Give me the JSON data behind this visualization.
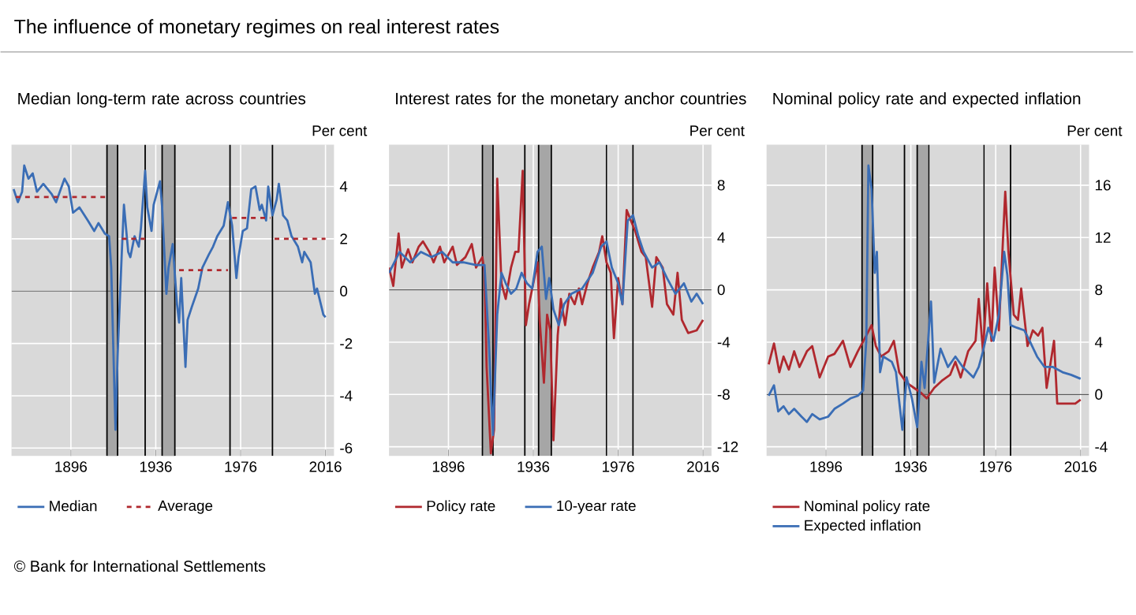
{
  "chart_data": [
    {
      "type": "other",
      "title": "The influence of monetary regimes on real interest rates",
      "annotations": [
        "© Bank for International Settlements"
      ]
    },
    {
      "type": "line",
      "title": "Median long-term rate across countries",
      "ylabel": "Per cent",
      "xlim": [
        1868,
        2020
      ],
      "ylim": [
        -6.3,
        5.6
      ],
      "xticks": [
        1896,
        1936,
        1976,
        2016
      ],
      "yticks": [
        -6,
        -4,
        -2,
        0,
        2,
        4
      ],
      "grid": true,
      "legend": "bottom",
      "bands": [
        {
          "axis": "x",
          "from": 1913,
          "to": 1918,
          "color": "#a6a6a6"
        },
        {
          "axis": "x",
          "from": 1939,
          "to": 1945,
          "color": "#a6a6a6"
        }
      ],
      "ref_lines": [
        {
          "axis": "y",
          "value": 0,
          "color": "#595959"
        },
        {
          "axis": "x",
          "value": 1913,
          "color": "#000000"
        },
        {
          "axis": "x",
          "value": 1918,
          "color": "#000000"
        },
        {
          "axis": "x",
          "value": 1931,
          "color": "#000000"
        },
        {
          "axis": "x",
          "value": 1939,
          "color": "#000000"
        },
        {
          "axis": "x",
          "value": 1945,
          "color": "#000000"
        },
        {
          "axis": "x",
          "value": 1971,
          "color": "#000000"
        },
        {
          "axis": "x",
          "value": 1991,
          "color": "#000000"
        }
      ],
      "series": [
        {
          "name": "Median",
          "color": "#3a6db5",
          "x": [
            1869,
            1871,
            1873,
            1874,
            1876,
            1878,
            1880,
            1883,
            1887,
            1889,
            1893,
            1895,
            1897,
            1900,
            1904,
            1907,
            1909,
            1912,
            1914,
            1915,
            1917,
            1918,
            1920,
            1921,
            1923,
            1924,
            1926,
            1928,
            1929,
            1931,
            1932,
            1934,
            1935,
            1936,
            1938,
            1939,
            1941,
            1942,
            1944,
            1946,
            1947,
            1948,
            1950,
            1951,
            1953,
            1956,
            1958,
            1961,
            1963,
            1965,
            1968,
            1970,
            1972,
            1974,
            1975,
            1977,
            1979,
            1981,
            1983,
            1985,
            1986,
            1988,
            1989,
            1991,
            1993,
            1994,
            1996,
            1998,
            2000,
            2003,
            2005,
            2006,
            2009,
            2011,
            2012,
            2015,
            2016
          ],
          "values": [
            3.9,
            3.4,
            3.8,
            4.8,
            4.3,
            4.5,
            3.8,
            4.1,
            3.7,
            3.4,
            4.3,
            4.0,
            3.0,
            3.2,
            2.7,
            2.3,
            2.6,
            2.2,
            2.1,
            0.9,
            -5.3,
            -2.5,
            1.5,
            3.3,
            1.5,
            1.3,
            2.1,
            1.7,
            2.4,
            4.6,
            3.2,
            2.3,
            3.3,
            3.6,
            4.2,
            3.2,
            -0.1,
            0.9,
            1.8,
            -0.5,
            -1.2,
            0.5,
            -2.9,
            -1.1,
            -0.6,
            0.1,
            0.9,
            1.4,
            1.7,
            2.1,
            2.5,
            3.4,
            2.5,
            0.5,
            1.3,
            2.3,
            2.4,
            3.9,
            4.0,
            3.1,
            3.3,
            2.7,
            4.0,
            2.9,
            3.5,
            4.1,
            2.9,
            2.7,
            2.1,
            1.7,
            1.1,
            1.5,
            1.1,
            -0.1,
            0.1,
            -0.9,
            -1.0
          ]
        },
        {
          "name": "Average",
          "color": "#b0282e",
          "line_style": "dashed",
          "x": [
            1870,
            1914,
            1917,
            1920,
            1931,
            1940,
            1947,
            1970,
            1971,
            1972,
            1990,
            1991,
            1992,
            2016
          ],
          "values": [
            3.6,
            3.6,
            null,
            2.0,
            2.0,
            null,
            0.8,
            0.8,
            null,
            2.8,
            2.8,
            null,
            2.0,
            2.0
          ]
        }
      ]
    },
    {
      "type": "line",
      "title": "Interest rates for the monetary anchor countries",
      "ylabel": "Per cent",
      "xlim": [
        1868,
        2020
      ],
      "ylim": [
        -12.7,
        11.1
      ],
      "xticks": [
        1896,
        1936,
        1976,
        2016
      ],
      "yticks": [
        -12,
        -8,
        -4,
        0,
        4,
        8
      ],
      "grid": true,
      "legend": "bottom",
      "bands": [
        {
          "axis": "x",
          "from": 1912,
          "to": 1917,
          "color": "#a6a6a6"
        },
        {
          "axis": "x",
          "from": 1938.5,
          "to": 1944.5,
          "color": "#a6a6a6"
        }
      ],
      "ref_lines": [
        {
          "axis": "y",
          "value": 0,
          "color": "#595959"
        },
        {
          "axis": "x",
          "value": 1912,
          "color": "#000000"
        },
        {
          "axis": "x",
          "value": 1917,
          "color": "#000000"
        },
        {
          "axis": "x",
          "value": 1932,
          "color": "#000000"
        },
        {
          "axis": "x",
          "value": 1938.5,
          "color": "#000000"
        },
        {
          "axis": "x",
          "value": 1944.5,
          "color": "#000000"
        },
        {
          "axis": "x",
          "value": 1970.5,
          "color": "#000000"
        },
        {
          "axis": "x",
          "value": 1983,
          "color": "#000000"
        }
      ],
      "series": [
        {
          "name": "Policy rate",
          "color": "#b0282e",
          "x": [
            1868,
            1870,
            1872.5,
            1874,
            1877,
            1879,
            1882,
            1884,
            1887,
            1889,
            1892,
            1894,
            1898,
            1900,
            1904,
            1907,
            1909,
            1912,
            1913,
            1914,
            1916,
            1917.5,
            1919,
            1921,
            1923,
            1925.5,
            1927.5,
            1929,
            1931,
            1932.5,
            1934,
            1936,
            1938,
            1939,
            1941,
            1942.5,
            1944,
            1945.5,
            1947.5,
            1949,
            1951,
            1953,
            1955.5,
            1957.5,
            1959,
            1961.5,
            1964,
            1967,
            1968.5,
            1970.5,
            1972.5,
            1974,
            1976,
            1978,
            1980,
            1982,
            1984,
            1987,
            1989,
            1992,
            1994,
            1997,
            1999,
            2002,
            2004,
            2006,
            2009,
            2013,
            2016
          ],
          "values": [
            1.7,
            0.3,
            4.3,
            1.7,
            3.1,
            2.1,
            3.3,
            3.7,
            2.9,
            2.1,
            3.3,
            2.1,
            3.3,
            1.9,
            2.5,
            3.5,
            1.7,
            2.5,
            1.3,
            -5.9,
            -12.5,
            -10.7,
            8.5,
            0.5,
            -0.7,
            1.7,
            2.9,
            2.9,
            9.1,
            -2.7,
            -1.1,
            0.5,
            2.1,
            -2.3,
            -7.1,
            -1.9,
            -3.1,
            -11.5,
            -3.5,
            -0.7,
            -2.7,
            -0.3,
            -1.1,
            0.1,
            -1.1,
            0.5,
            1.7,
            2.9,
            4.1,
            2.1,
            1.3,
            -3.7,
            0.9,
            -1.1,
            6.1,
            5.3,
            4.5,
            2.9,
            2.5,
            -1.3,
            2.5,
            1.7,
            -1.1,
            -1.9,
            1.3,
            -2.3,
            -3.3,
            -3.1,
            -2.3
          ]
        },
        {
          "name": "10-year rate",
          "color": "#3a6db5",
          "x": [
            1868,
            1873,
            1878,
            1883,
            1888,
            1893,
            1898,
            1903,
            1909,
            1913,
            1915,
            1917,
            1919,
            1921,
            1923,
            1925.5,
            1928,
            1930.5,
            1933,
            1935.5,
            1938,
            1940,
            1942,
            1943.5,
            1945.5,
            1948,
            1950.5,
            1954,
            1959,
            1964,
            1968,
            1970.5,
            1973,
            1976,
            1978,
            1980.5,
            1983,
            1985.5,
            1988,
            1992,
            1995.5,
            1999,
            2003,
            2007,
            2010.5,
            2013,
            2016
          ],
          "values": [
            1.3,
            2.9,
            2.1,
            2.9,
            2.5,
            2.9,
            2.1,
            2.1,
            1.9,
            1.9,
            -3.9,
            -11.1,
            -1.9,
            1.3,
            0.5,
            -0.3,
            0.1,
            1.3,
            0.5,
            0.1,
            2.9,
            3.3,
            -0.7,
            0.9,
            -1.5,
            -2.7,
            -1.1,
            -0.3,
            0.1,
            1.3,
            3.3,
            3.7,
            1.7,
            0.5,
            -1.1,
            5.3,
            5.7,
            4.1,
            2.9,
            1.7,
            2.1,
            0.9,
            -0.3,
            0.5,
            -0.9,
            -0.3,
            -1.1
          ]
        }
      ]
    },
    {
      "type": "line",
      "title": "Nominal policy rate and expected inflation",
      "ylabel": "Per cent",
      "xlim": [
        1868,
        2020
      ],
      "ylim": [
        -4.7,
        19.1
      ],
      "xticks": [
        1896,
        1936,
        1976,
        2016
      ],
      "yticks": [
        -4,
        0,
        4,
        8,
        12,
        16
      ],
      "grid": true,
      "legend": "bottom",
      "bands": [
        {
          "axis": "x",
          "from": 1913,
          "to": 1918,
          "color": "#a6a6a6"
        },
        {
          "axis": "x",
          "from": 1939,
          "to": 1944.5,
          "color": "#a6a6a6"
        }
      ],
      "ref_lines": [
        {
          "axis": "y",
          "value": 0,
          "color": "#595959"
        },
        {
          "axis": "x",
          "value": 1913,
          "color": "#000000"
        },
        {
          "axis": "x",
          "value": 1918,
          "color": "#000000"
        },
        {
          "axis": "x",
          "value": 1933,
          "color": "#000000"
        },
        {
          "axis": "x",
          "value": 1939,
          "color": "#000000"
        },
        {
          "axis": "x",
          "value": 1944.5,
          "color": "#000000"
        },
        {
          "axis": "x",
          "value": 1970.5,
          "color": "#000000"
        },
        {
          "axis": "x",
          "value": 1983,
          "color": "#000000"
        }
      ],
      "series": [
        {
          "name": "Nominal policy rate",
          "color": "#b0282e",
          "x": [
            1869,
            1871.5,
            1874,
            1876,
            1878.5,
            1881,
            1883.5,
            1887,
            1889.5,
            1893,
            1897,
            1900,
            1904,
            1907.5,
            1911,
            1915,
            1917.5,
            1919.5,
            1922,
            1925.5,
            1928,
            1930.5,
            1934,
            1937.5,
            1941,
            1943.5,
            1947,
            1951,
            1954.5,
            1957,
            1959.5,
            1963,
            1966.5,
            1968,
            1970,
            1972,
            1974,
            1975.5,
            1977.5,
            1979.5,
            1980.5,
            1982,
            1984.5,
            1986.5,
            1988,
            1991,
            1993.5,
            1996,
            1998,
            2000,
            2003.5,
            2005,
            2010,
            2013.5,
            2016
          ],
          "values": [
            2.3,
            3.9,
            1.7,
            2.9,
            1.9,
            3.3,
            2.1,
            3.3,
            3.7,
            1.3,
            2.9,
            3.1,
            4.1,
            2.1,
            3.3,
            4.5,
            5.3,
            3.7,
            2.9,
            3.3,
            4.1,
            1.7,
            0.9,
            0.5,
            0.1,
            -0.3,
            0.5,
            1.1,
            1.5,
            2.5,
            1.3,
            3.3,
            4.1,
            7.3,
            3.3,
            8.5,
            4.1,
            9.7,
            4.9,
            12.1,
            15.5,
            10.9,
            6.1,
            5.7,
            8.1,
            3.7,
            4.9,
            4.5,
            5.1,
            0.5,
            4.1,
            -0.7,
            -0.7,
            -0.7,
            -0.4
          ]
        },
        {
          "name": "Expected inflation",
          "color": "#3a6db5",
          "x": [
            1869,
            1871.5,
            1873.5,
            1876,
            1878.5,
            1881,
            1884.5,
            1887,
            1889.5,
            1893,
            1897,
            1900,
            1904,
            1907.5,
            1911,
            1913.5,
            1915,
            1916,
            1917.5,
            1919,
            1920,
            1921.5,
            1923,
            1927,
            1929,
            1932,
            1934,
            1936.5,
            1939,
            1941,
            1942.5,
            1945.5,
            1947,
            1950,
            1953.5,
            1957,
            1960.5,
            1965.5,
            1968,
            1970,
            1972.5,
            1975,
            1977.5,
            1980,
            1981.5,
            1983,
            1986,
            1989.5,
            1992,
            1995.5,
            1999,
            2003,
            2007.5,
            2011.5,
            2016
          ],
          "values": [
            -0.1,
            0.7,
            -1.3,
            -0.9,
            -1.5,
            -1.1,
            -1.7,
            -2.1,
            -1.5,
            -1.9,
            -1.7,
            -1.1,
            -0.7,
            -0.3,
            -0.1,
            0.3,
            4.1,
            17.5,
            15.7,
            9.3,
            10.9,
            1.7,
            2.9,
            2.5,
            1.7,
            -2.7,
            1.3,
            -0.3,
            -2.5,
            2.5,
            0.5,
            7.1,
            0.9,
            3.5,
            2.1,
            2.9,
            2.1,
            1.3,
            2.1,
            3.3,
            5.1,
            4.1,
            6.1,
            10.9,
            9.1,
            5.3,
            5.1,
            4.9,
            4.1,
            2.9,
            2.1,
            2.1,
            1.7,
            1.5,
            1.2
          ]
        }
      ]
    }
  ]
}
